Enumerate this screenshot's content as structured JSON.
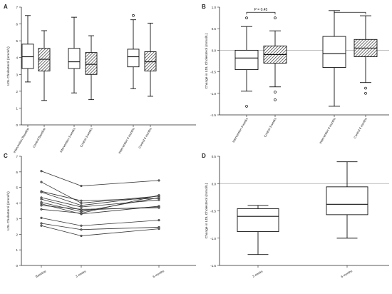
{
  "chart_data": [
    {
      "panel": "A",
      "type": "boxplot",
      "ylabel": "LDL Cholesterol (mmol/L)",
      "ylim": [
        0,
        7
      ],
      "yticks": [
        0,
        1,
        2,
        3,
        4,
        5,
        6,
        7
      ],
      "categories": [
        "Intervention Baseline",
        "Control Baseline",
        "Intervention 3 weeks",
        "Control 3 weeks",
        "Intervention 6 months",
        "Control 6 months"
      ],
      "boxes": [
        {
          "min": 2.55,
          "q1": 3.35,
          "median": 4.05,
          "q3": 4.8,
          "max": 6.5,
          "outliers": [],
          "hatched": false
        },
        {
          "min": 1.45,
          "q1": 3.2,
          "median": 3.9,
          "q3": 4.55,
          "max": 5.6,
          "outliers": [],
          "hatched": true
        },
        {
          "min": 1.9,
          "q1": 3.35,
          "median": 3.75,
          "q3": 4.55,
          "max": 6.4,
          "outliers": [],
          "hatched": false
        },
        {
          "min": 1.5,
          "q1": 3.0,
          "median": 3.6,
          "q3": 4.3,
          "max": 5.3,
          "outliers": [],
          "hatched": true
        },
        {
          "min": 2.15,
          "q1": 3.45,
          "median": 4.05,
          "q3": 4.5,
          "max": 6.25,
          "outliers": [
            6.5
          ],
          "hatched": false
        },
        {
          "min": 1.7,
          "q1": 3.2,
          "median": 3.75,
          "q3": 4.35,
          "max": 6.05,
          "outliers": [],
          "hatched": true
        }
      ]
    },
    {
      "panel": "B",
      "type": "boxplot",
      "ylabel": "Change in LDL Cholesterol (mmol/L)",
      "ylim": [
        -1.5,
        1.0
      ],
      "yticks": [
        -1.5,
        -1.0,
        -0.5,
        0.0,
        0.5,
        1.0
      ],
      "reference_line": 0,
      "annotation": "P = 0.45",
      "categories": [
        "Intervention 3 weeks",
        "Control 3 weeks",
        "Intervention 6 months",
        "Control 6 months"
      ],
      "boxes": [
        {
          "min": -0.95,
          "q1": -0.45,
          "median": -0.18,
          "q3": 0.0,
          "max": 0.55,
          "outliers": [
            0.75,
            -1.3
          ],
          "hatched": false
        },
        {
          "min": -0.85,
          "q1": -0.3,
          "median": -0.1,
          "q3": 0.1,
          "max": 0.45,
          "outliers": [
            0.75,
            -0.97,
            -1.15
          ],
          "hatched": true
        },
        {
          "min": -1.3,
          "q1": -0.4,
          "median": -0.08,
          "q3": 0.32,
          "max": 0.92,
          "outliers": [],
          "hatched": false
        },
        {
          "min": -0.75,
          "q1": -0.15,
          "median": 0.05,
          "q3": 0.25,
          "max": 0.8,
          "outliers": [
            -0.88,
            -1.0
          ],
          "hatched": true
        }
      ]
    },
    {
      "panel": "C",
      "type": "line",
      "ylabel": "LDL Cholesterol (mmol/L)",
      "ylim": [
        0,
        7
      ],
      "yticks": [
        0,
        1,
        2,
        3,
        4,
        5,
        6,
        7
      ],
      "x": [
        "Baseline",
        "3 weeks",
        "6 months"
      ],
      "series": [
        {
          "values": [
            6.05,
            5.1,
            5.45
          ]
        },
        {
          "values": [
            5.35,
            4.0,
            4.45
          ]
        },
        {
          "values": [
            4.75,
            4.15,
            4.3
          ]
        },
        {
          "values": [
            4.7,
            3.85,
            4.45
          ]
        },
        {
          "values": [
            4.35,
            3.75,
            4.2
          ]
        },
        {
          "values": [
            4.25,
            3.55,
            3.75
          ]
        },
        {
          "values": [
            4.05,
            3.45,
            4.35
          ]
        },
        {
          "values": [
            3.95,
            3.3,
            3.8
          ]
        },
        {
          "values": [
            3.85,
            3.6,
            3.7
          ]
        },
        {
          "values": [
            3.6,
            3.35,
            4.5
          ]
        },
        {
          "values": [
            3.05,
            2.55,
            2.9
          ]
        },
        {
          "values": [
            2.7,
            2.3,
            2.45
          ]
        },
        {
          "values": [
            2.55,
            1.9,
            2.35
          ]
        }
      ]
    },
    {
      "panel": "D",
      "type": "boxplot",
      "ylabel": "Change in LDL Cholesterol (mmol/L)",
      "ylim": [
        -1.5,
        0.5
      ],
      "yticks": [
        -1.5,
        -1.0,
        -0.5,
        0.0,
        0.5
      ],
      "reference_line": 0,
      "categories": [
        "3 weeks",
        "6 months"
      ],
      "boxes": [
        {
          "min": -1.3,
          "q1": -0.88,
          "median": -0.6,
          "q3": -0.46,
          "max": -0.4,
          "outliers": [],
          "hatched": false
        },
        {
          "min": -1.0,
          "q1": -0.57,
          "median": -0.38,
          "q3": -0.06,
          "max": 0.4,
          "outliers": [],
          "hatched": false
        }
      ]
    }
  ]
}
